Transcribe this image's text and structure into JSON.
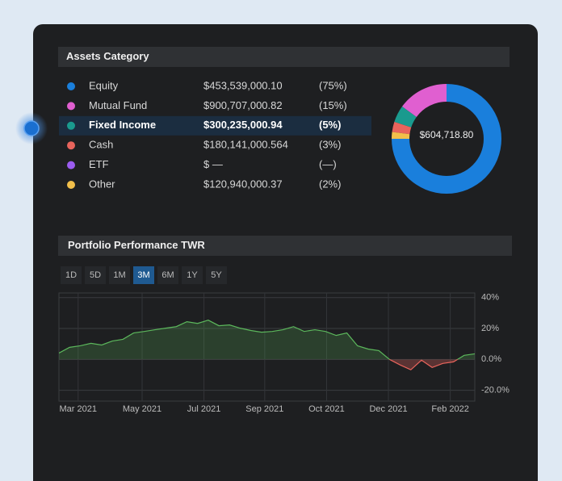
{
  "chart_data": [
    {
      "type": "pie",
      "title": "Assets Category",
      "categories": [
        "Equity",
        "Mutual Fund",
        "Fixed Income",
        "Cash",
        "ETF",
        "Other"
      ],
      "amounts": [
        "$453,539,000.10",
        "$900,707,000.82",
        "$300,235,000.94",
        "$180,141,000.564",
        "$ —",
        "$120,940,000.37"
      ],
      "values": [
        75,
        15,
        5,
        3,
        null,
        2
      ],
      "value_labels": [
        "(75%)",
        "(15%)",
        "(5%)",
        "(3%)",
        "(—)",
        "(2%)"
      ],
      "colors": [
        "#1a7fdc",
        "#e05fd0",
        "#1a9a8e",
        "#e8645c",
        "#9b5cf0",
        "#f2bf4a"
      ],
      "center_label": "$604,718.80",
      "highlight": "Fixed Income"
    },
    {
      "type": "line",
      "title": "Portfolio Performance TWR",
      "ranges": [
        "1D",
        "5D",
        "1M",
        "3M",
        "6M",
        "1Y",
        "5Y"
      ],
      "selected_range": "3M",
      "x": [
        0,
        1,
        2,
        3,
        4,
        5,
        6,
        7,
        8,
        9,
        10,
        11,
        12,
        13,
        14,
        15,
        16,
        17,
        18,
        19,
        20,
        21,
        22,
        23,
        24,
        25,
        26,
        27,
        28,
        29,
        30,
        31,
        32,
        33,
        34,
        35,
        36,
        37,
        38,
        39
      ],
      "values": [
        4.1,
        7.8,
        8.8,
        10.4,
        9.3,
        11.9,
        13.0,
        17.1,
        18.1,
        19.2,
        20.2,
        21.2,
        24.4,
        23.3,
        25.4,
        21.8,
        22.3,
        20.2,
        18.7,
        17.6,
        18.1,
        19.2,
        21.2,
        18.1,
        19.2,
        18.1,
        15.5,
        17.1,
        8.8,
        6.7,
        5.7,
        0,
        -3.6,
        -6.7,
        -0.5,
        -5.2,
        -2.6,
        -1.6,
        2.6,
        3.6
      ],
      "color": "#5cb85c",
      "negative_color": "#e8645c",
      "xlim": [
        0,
        39
      ],
      "xticks": [
        {
          "value": 1.8,
          "label": "Mar 2021"
        },
        {
          "value": 7.8,
          "label": "May 2021"
        },
        {
          "value": 13.6,
          "label": "Jul 2021"
        },
        {
          "value": 19.3,
          "label": "Sep 2021"
        },
        {
          "value": 25.1,
          "label": "Oct 2021"
        },
        {
          "value": 30.9,
          "label": "Dec 2021"
        },
        {
          "value": 36.7,
          "label": "Feb 2022"
        }
      ],
      "ylim": [
        -27,
        43
      ],
      "yticks": [
        {
          "value": 40,
          "label": "40%"
        },
        {
          "value": 20,
          "label": "20%"
        },
        {
          "value": 0,
          "label": "0.0%"
        },
        {
          "value": -20,
          "label": "-20.0%"
        }
      ],
      "grid": true
    }
  ]
}
